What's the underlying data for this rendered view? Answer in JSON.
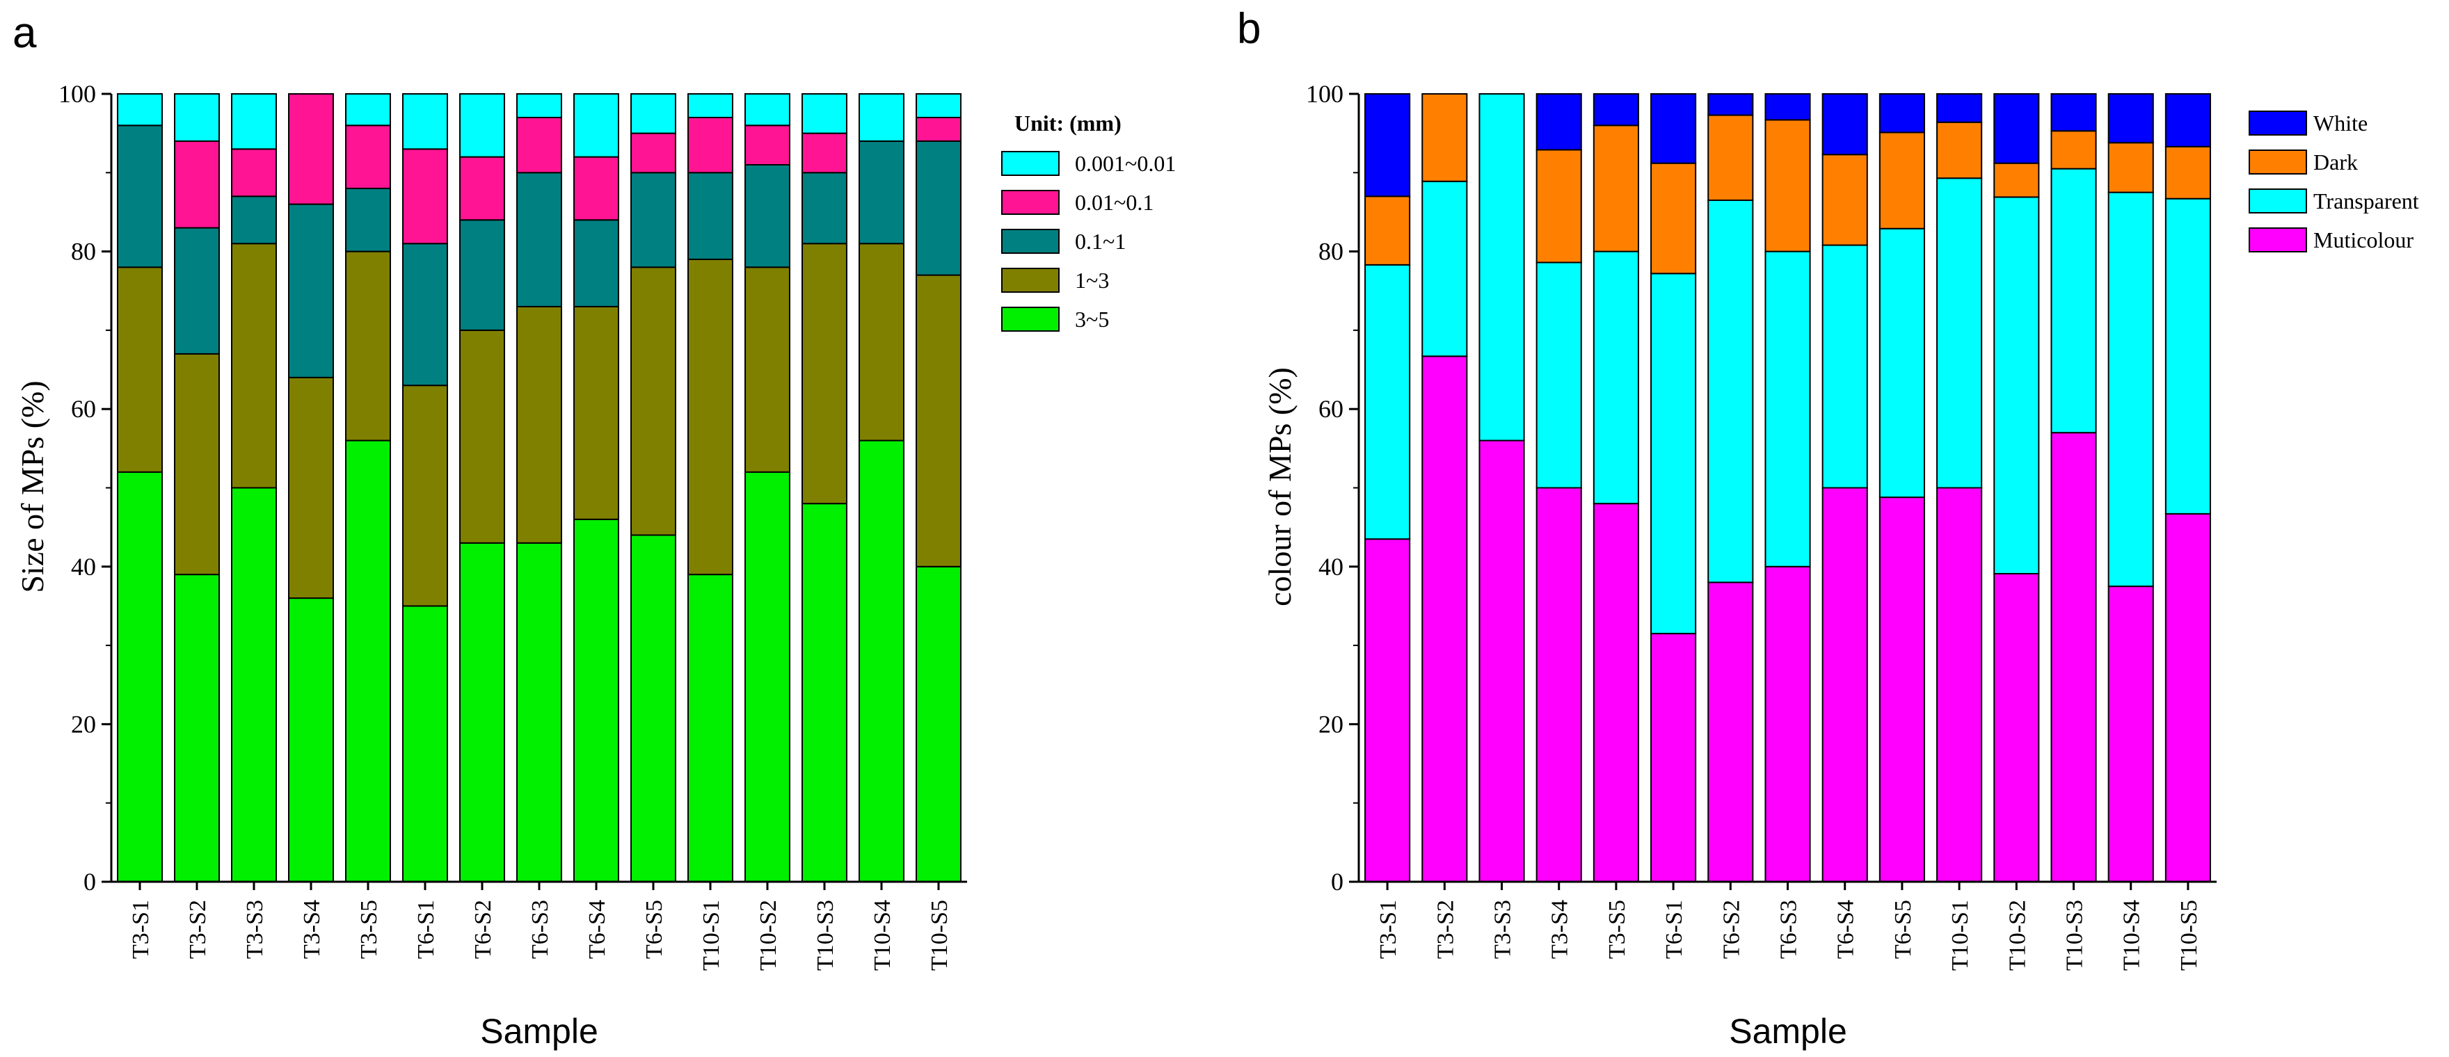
{
  "chart_data": [
    {
      "type": "bar",
      "stacked": true,
      "panel_label": "a",
      "title": "",
      "xlabel": "Sample",
      "ylabel": "Size of MPs (%)",
      "ylim": [
        0,
        100
      ],
      "yticks": [
        "0",
        "20",
        "40",
        "60",
        "80",
        "100"
      ],
      "legend_title": "Unit: (mm)",
      "legend_position": "top-right",
      "categories": [
        "T3-S1",
        "T3-S2",
        "T3-S3",
        "T3-S4",
        "T3-S5",
        "T6-S1",
        "T6-S2",
        "T6-S3",
        "T6-S4",
        "T6-S5",
        "T10-S1",
        "T10-S2",
        "T10-S3",
        "T10-S4",
        "T10-S5"
      ],
      "series": [
        {
          "name": "3~5",
          "color": "#00f000",
          "values": [
            52,
            39,
            50,
            36,
            56,
            35,
            43,
            43,
            46,
            44,
            39,
            52,
            48,
            56,
            40
          ]
        },
        {
          "name": "1~3",
          "color": "#808000",
          "values": [
            26,
            28,
            31,
            28,
            24,
            28,
            27,
            30,
            27,
            34,
            40,
            26,
            33,
            25,
            37
          ]
        },
        {
          "name": "0.1~1",
          "color": "#008080",
          "values": [
            18,
            16,
            6,
            22,
            8,
            18,
            14,
            17,
            11,
            12,
            11,
            13,
            9,
            13,
            17
          ]
        },
        {
          "name": "0.01~0.1",
          "color": "#ff1493",
          "values": [
            0,
            11,
            6,
            14,
            8,
            12,
            8,
            7,
            8,
            5,
            7,
            5,
            5,
            0,
            3
          ]
        },
        {
          "name": "0.001~0.01",
          "color": "#00ffff",
          "values": [
            4,
            6,
            7,
            0,
            4,
            7,
            8,
            3,
            8,
            5,
            3,
            4,
            5,
            6,
            3
          ]
        }
      ]
    },
    {
      "type": "bar",
      "stacked": true,
      "panel_label": "b",
      "title": "",
      "xlabel": "Sample",
      "ylabel": "colour of MPs (%)",
      "ylim": [
        0,
        100
      ],
      "yticks": [
        "0",
        "20",
        "40",
        "60",
        "80",
        "100"
      ],
      "legend_position": "top-right",
      "categories": [
        "T3-S1",
        "T3-S2",
        "T3-S3",
        "T3-S4",
        "T3-S5",
        "T6-S1",
        "T6-S2",
        "T6-S3",
        "T6-S4",
        "T6-S5",
        "T10-S1",
        "T10-S2",
        "T10-S3",
        "T10-S4",
        "T10-S5"
      ],
      "series": [
        {
          "name": "Muticolour",
          "color": "#ff00ff",
          "values": [
            43.5,
            66.7,
            56,
            50,
            48,
            31.5,
            38,
            40,
            50,
            48.8,
            50,
            39.1,
            57,
            37.5,
            46.7
          ]
        },
        {
          "name": "Transparent",
          "color": "#00ffff",
          "values": [
            34.8,
            22.2,
            44,
            28.6,
            32,
            45.7,
            48.5,
            40,
            30.8,
            34.1,
            39.3,
            47.8,
            33.5,
            50,
            40
          ]
        },
        {
          "name": "Dark",
          "color": "#ff8000",
          "values": [
            8.7,
            11.1,
            0,
            14.3,
            16,
            14,
            10.8,
            16.7,
            11.5,
            12.2,
            7.1,
            4.3,
            4.8,
            6.3,
            6.6
          ]
        },
        {
          "name": "White",
          "color": "#0000ff",
          "values": [
            13,
            0,
            0,
            7.1,
            4,
            8.8,
            2.7,
            3.3,
            7.7,
            4.9,
            3.6,
            8.8,
            4.7,
            6.2,
            6.7
          ]
        }
      ]
    }
  ]
}
